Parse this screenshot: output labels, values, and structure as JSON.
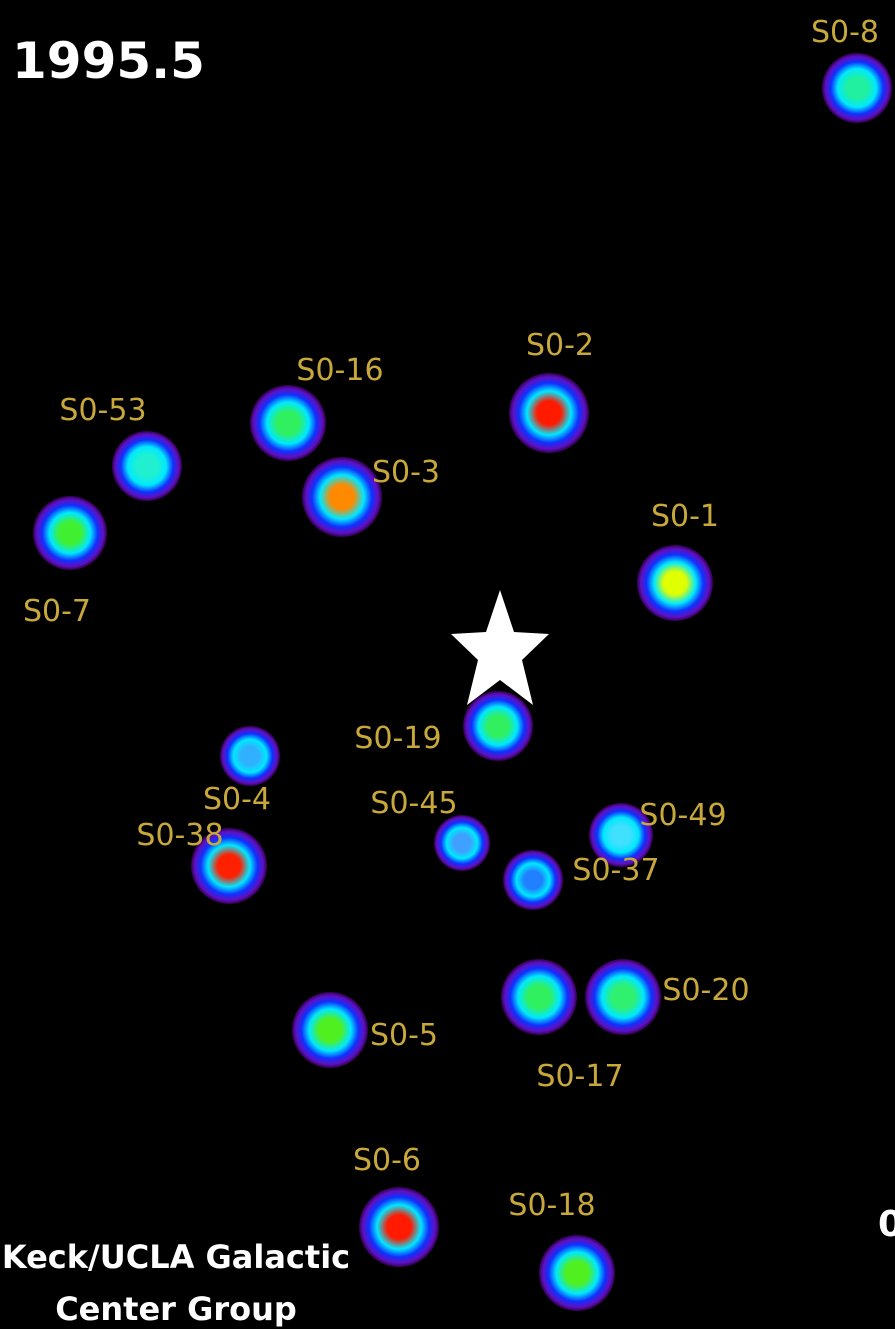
{
  "header": {
    "epoch": "1995.5"
  },
  "credit": {
    "line1": "Keck/UCLA Galactic",
    "line2": "Center Group"
  },
  "scale_label": "0",
  "stars": [
    {
      "label": "S0-8",
      "core": "#20f0a0"
    },
    {
      "label": "S0-16",
      "core": "#30f060"
    },
    {
      "label": "S0-2",
      "core": "#ff1a00"
    },
    {
      "label": "S0-53",
      "core": "#20f0d0"
    },
    {
      "label": "S0-3",
      "core": "#ff8a00"
    },
    {
      "label": "S0-7",
      "core": "#40f030"
    },
    {
      "label": "S0-1",
      "core": "#e0ff00"
    },
    {
      "label": "S0-19",
      "core": "#30f060"
    },
    {
      "label": "S0-4",
      "core": "#30b0ff"
    },
    {
      "label": "S0-45",
      "core": "#40a0ff"
    },
    {
      "label": "S0-49",
      "core": "#40e0ff"
    },
    {
      "label": "S0-38",
      "core": "#ff2000"
    },
    {
      "label": "S0-37",
      "core": "#2080ff"
    },
    {
      "label": "S0-20",
      "core": "#30f070"
    },
    {
      "label": "S0-17",
      "core": "#30f060"
    },
    {
      "label": "S0-5",
      "core": "#50f020"
    },
    {
      "label": "S0-6",
      "core": "#ff1a00"
    },
    {
      "label": "S0-18",
      "core": "#50f020"
    }
  ]
}
